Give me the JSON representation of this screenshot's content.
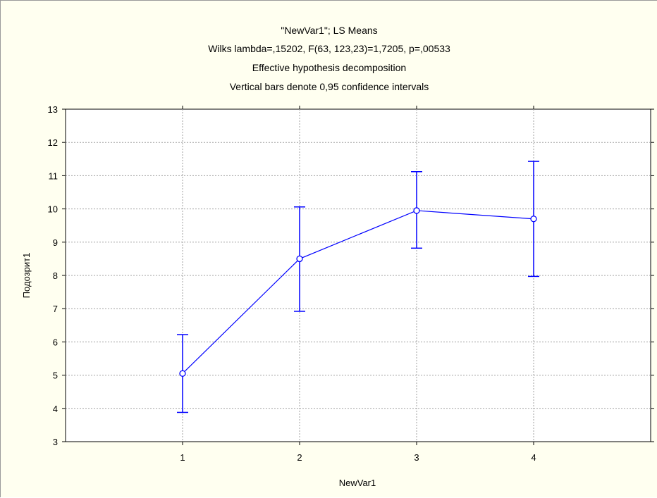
{
  "chart_data": {
    "type": "line",
    "title_lines": [
      "\"NewVar1\"; LS Means",
      "Wilks lambda=,15202, F(63, 123,23)=1,7205, p=,00533",
      "Effective hypothesis decomposition",
      "Vertical bars denote 0,95 confidence intervals"
    ],
    "xlabel": "NewVar1",
    "ylabel": "Подозрит1",
    "categories": [
      "1",
      "2",
      "3",
      "4"
    ],
    "xlim": [
      0,
      5
    ],
    "ylim": [
      3,
      13
    ],
    "yticks": [
      3,
      4,
      5,
      6,
      7,
      8,
      9,
      10,
      11,
      12,
      13
    ],
    "grid": true,
    "series": [
      {
        "values": [
          5.05,
          8.5,
          9.95,
          9.7
        ],
        "ci_lower": [
          3.88,
          6.92,
          8.82,
          7.97
        ],
        "ci_upper": [
          6.22,
          10.06,
          11.12,
          11.43
        ],
        "color": "#0000ff"
      }
    ],
    "colors": {
      "background": "#fffff0",
      "plot_background": "#ffffff",
      "series": "#0000ff",
      "grid": "#a0a0a0"
    }
  }
}
